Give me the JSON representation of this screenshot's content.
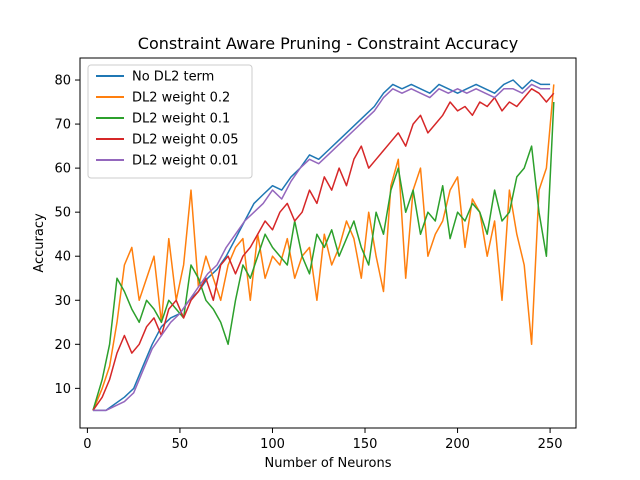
{
  "chart_data": {
    "type": "line",
    "title": "Constraint Aware Pruning - Constraint Accuracy",
    "xlabel": "Number of Neurons",
    "ylabel": "Accuracy",
    "xlim": [
      -4,
      264
    ],
    "ylim": [
      1,
      85
    ],
    "xticks": [
      0,
      50,
      100,
      150,
      200,
      250
    ],
    "yticks": [
      10,
      20,
      30,
      40,
      50,
      60,
      70,
      80
    ],
    "grid": false,
    "legend_position": "top-left",
    "series": [
      {
        "name": "No DL2 term",
        "color": "#1f77b4",
        "x": [
          3,
          10,
          20,
          25,
          30,
          35,
          40,
          45,
          50,
          55,
          60,
          65,
          70,
          75,
          80,
          85,
          90,
          95,
          100,
          105,
          110,
          115,
          120,
          125,
          130,
          135,
          140,
          145,
          150,
          155,
          160,
          165,
          170,
          175,
          180,
          185,
          190,
          195,
          200,
          205,
          210,
          215,
          220,
          225,
          230,
          235,
          240,
          245,
          250
        ],
        "y": [
          5,
          5,
          8,
          10,
          15,
          20,
          24,
          26,
          27,
          30,
          32,
          35,
          37,
          40,
          44,
          48,
          52,
          54,
          56,
          55,
          58,
          60,
          63,
          62,
          64,
          66,
          68,
          70,
          72,
          74,
          77,
          79,
          78,
          79,
          78,
          77,
          79,
          78,
          77,
          78,
          79,
          78,
          77,
          79,
          80,
          78,
          80,
          79,
          79
        ]
      },
      {
        "name": "DL2 weight 0.2",
        "color": "#ff7f0e",
        "x": [
          3,
          8,
          12,
          16,
          20,
          24,
          28,
          32,
          36,
          40,
          44,
          48,
          52,
          56,
          60,
          64,
          68,
          72,
          76,
          80,
          84,
          88,
          92,
          96,
          100,
          104,
          108,
          112,
          116,
          120,
          124,
          128,
          132,
          136,
          140,
          144,
          148,
          152,
          156,
          160,
          164,
          168,
          172,
          176,
          180,
          184,
          188,
          192,
          196,
          200,
          204,
          208,
          212,
          216,
          220,
          224,
          228,
          232,
          236,
          240,
          244,
          248,
          252
        ],
        "y": [
          5,
          10,
          15,
          25,
          38,
          42,
          30,
          35,
          40,
          25,
          44,
          30,
          38,
          55,
          33,
          40,
          35,
          30,
          38,
          42,
          44,
          30,
          45,
          35,
          40,
          38,
          44,
          35,
          40,
          42,
          30,
          45,
          38,
          42,
          48,
          44,
          35,
          50,
          40,
          32,
          56,
          62,
          35,
          55,
          60,
          40,
          45,
          48,
          55,
          58,
          42,
          53,
          50,
          40,
          48,
          30,
          55,
          45,
          38,
          20,
          55,
          60,
          79
        ]
      },
      {
        "name": "DL2 weight 0.1",
        "color": "#2ca02c",
        "x": [
          3,
          8,
          12,
          16,
          20,
          24,
          28,
          32,
          36,
          40,
          44,
          48,
          52,
          56,
          60,
          64,
          68,
          72,
          76,
          80,
          84,
          88,
          92,
          96,
          100,
          104,
          108,
          112,
          116,
          120,
          124,
          128,
          132,
          136,
          140,
          144,
          148,
          152,
          156,
          160,
          164,
          168,
          172,
          176,
          180,
          184,
          188,
          192,
          196,
          200,
          204,
          208,
          212,
          216,
          220,
          224,
          228,
          232,
          236,
          240,
          244,
          248,
          252
        ],
        "y": [
          5,
          12,
          20,
          35,
          32,
          28,
          25,
          30,
          28,
          25,
          30,
          28,
          26,
          38,
          35,
          30,
          28,
          25,
          20,
          30,
          38,
          35,
          40,
          45,
          42,
          40,
          38,
          48,
          40,
          36,
          45,
          42,
          46,
          40,
          44,
          48,
          42,
          38,
          50,
          45,
          55,
          60,
          50,
          55,
          45,
          50,
          48,
          56,
          44,
          50,
          48,
          52,
          50,
          45,
          55,
          48,
          50,
          58,
          60,
          65,
          50,
          40,
          75
        ]
      },
      {
        "name": "DL2 weight 0.05",
        "color": "#d62728",
        "x": [
          3,
          8,
          12,
          16,
          20,
          24,
          28,
          32,
          36,
          40,
          44,
          48,
          52,
          56,
          60,
          64,
          68,
          72,
          76,
          80,
          84,
          88,
          92,
          96,
          100,
          104,
          108,
          112,
          116,
          120,
          124,
          128,
          132,
          136,
          140,
          144,
          148,
          152,
          156,
          160,
          164,
          168,
          172,
          176,
          180,
          184,
          188,
          192,
          196,
          200,
          204,
          208,
          212,
          216,
          220,
          224,
          228,
          232,
          236,
          240,
          244,
          248,
          252
        ],
        "y": [
          5,
          8,
          12,
          18,
          22,
          18,
          20,
          24,
          26,
          22,
          28,
          30,
          26,
          30,
          32,
          35,
          30,
          38,
          40,
          36,
          40,
          42,
          45,
          48,
          46,
          50,
          52,
          48,
          50,
          55,
          52,
          58,
          55,
          60,
          56,
          62,
          65,
          60,
          62,
          64,
          66,
          68,
          65,
          70,
          72,
          68,
          70,
          72,
          75,
          73,
          74,
          72,
          75,
          74,
          76,
          73,
          75,
          74,
          76,
          78,
          77,
          75,
          77
        ]
      },
      {
        "name": "DL2 weight 0.01",
        "color": "#9467bd",
        "x": [
          3,
          10,
          20,
          25,
          30,
          35,
          40,
          45,
          50,
          55,
          60,
          65,
          70,
          75,
          80,
          85,
          90,
          95,
          100,
          105,
          110,
          115,
          120,
          125,
          130,
          135,
          140,
          145,
          150,
          155,
          160,
          165,
          170,
          175,
          180,
          185,
          190,
          195,
          200,
          205,
          210,
          215,
          220,
          225,
          230,
          235,
          240,
          245,
          250
        ],
        "y": [
          5,
          5,
          7,
          9,
          14,
          19,
          22,
          25,
          27,
          30,
          33,
          36,
          38,
          42,
          45,
          48,
          50,
          52,
          55,
          53,
          57,
          60,
          62,
          61,
          63,
          65,
          67,
          69,
          71,
          73,
          76,
          78,
          77,
          78,
          77,
          76,
          78,
          77,
          78,
          77,
          78,
          77,
          76,
          78,
          78,
          77,
          79,
          78,
          78
        ]
      }
    ]
  }
}
